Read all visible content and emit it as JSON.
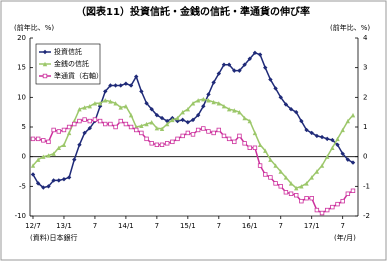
{
  "chart_data": {
    "type": "line",
    "title": "（図表11）投資信託・金銭の信託・準通貨の伸び率",
    "y_label": "(前年比、%)",
    "y2_label": "(前年比、%)",
    "x_label": "(年/月)",
    "source": "(資料)日本銀行",
    "categories": [
      "12/7",
      null,
      null,
      null,
      null,
      null,
      "13/1",
      null,
      null,
      null,
      null,
      null,
      "7",
      null,
      null,
      null,
      null,
      null,
      "14/1",
      null,
      null,
      null,
      null,
      null,
      "7",
      null,
      null,
      null,
      null,
      null,
      "15/1",
      null,
      null,
      null,
      null,
      null,
      "7",
      null,
      null,
      null,
      null,
      null,
      "16/1",
      null,
      null,
      null,
      null,
      null,
      "7",
      null,
      null,
      null,
      null,
      null,
      "17/1",
      null,
      null,
      null,
      null,
      null,
      "7",
      null,
      null
    ],
    "ylim": [
      -10,
      20
    ],
    "yticks": [
      -10,
      -5,
      0,
      5,
      10,
      15,
      20
    ],
    "y2lim": [
      -2,
      4
    ],
    "y2ticks": [
      -2,
      -1,
      0,
      1,
      2,
      3,
      4
    ],
    "legend": "upper left",
    "series": [
      {
        "name": "投資信託",
        "color": "#1f2a78",
        "marker": "diamond",
        "values": [
          -3,
          -4.5,
          -5.2,
          -5,
          -4,
          -4,
          -3.8,
          -3.5,
          -0.5,
          2,
          4,
          4.8,
          6,
          8.5,
          11,
          12,
          12,
          12,
          12.3,
          12,
          13.5,
          11,
          9,
          8,
          7,
          6.5,
          6,
          6.5,
          6,
          6.2,
          5.8,
          6.2,
          7,
          8.5,
          10.5,
          12.5,
          14,
          15.5,
          15.5,
          14.5,
          14.5,
          15.5,
          16.5,
          17.5,
          17.2,
          15,
          13,
          11.5,
          10,
          8.8,
          8,
          7.5,
          6,
          4.5,
          4,
          3.5,
          3.3,
          3,
          2.8,
          2,
          0.5,
          -0.5,
          -1
        ]
      },
      {
        "name": "金銭の信託",
        "color": "#9cc76a",
        "marker": "triangle",
        "values": [
          -1.5,
          -0.5,
          0,
          0.2,
          0.5,
          1.5,
          2,
          4,
          6,
          8,
          8.3,
          8.5,
          9,
          9,
          9.5,
          9.3,
          9,
          8.3,
          8.5,
          7,
          5,
          5.2,
          5.5,
          5.8,
          4.8,
          4.7,
          5.5,
          6.2,
          6.5,
          7.5,
          8,
          9,
          9.5,
          9.7,
          9.5,
          9.2,
          9,
          8.5,
          8,
          7.8,
          7.5,
          6.5,
          6,
          4,
          2,
          1,
          -0.5,
          -1.5,
          -2.5,
          -3.5,
          -4.5,
          -5.3,
          -5,
          -4.5,
          -3.5,
          -2.5,
          -1.5,
          0,
          1.5,
          3,
          4.5,
          6,
          7
        ]
      },
      {
        "name": "準通貨（右軸）",
        "color": "#cc2f9c",
        "marker": "square",
        "axis": "y2",
        "values": [
          0.6,
          0.6,
          0.55,
          0.5,
          0.9,
          0.85,
          0.9,
          1,
          1.1,
          1.2,
          1.25,
          1.2,
          1.25,
          1.2,
          1.1,
          1.1,
          1,
          1.2,
          1.1,
          1,
          0.9,
          0.8,
          0.6,
          0.45,
          0.4,
          0.4,
          0.45,
          0.5,
          0.6,
          0.7,
          0.8,
          0.75,
          0.9,
          0.95,
          0.85,
          0.8,
          0.9,
          0.7,
          0.6,
          0.5,
          0.7,
          0.45,
          0.3,
          0.3,
          -0.3,
          -0.6,
          -0.7,
          -0.9,
          -1,
          -1.2,
          -1.25,
          -1.3,
          -1.5,
          -1.4,
          -1.4,
          -1.8,
          -1.9,
          -1.8,
          -1.7,
          -1.6,
          -1.5,
          -1.25,
          -1.15
        ]
      }
    ]
  }
}
